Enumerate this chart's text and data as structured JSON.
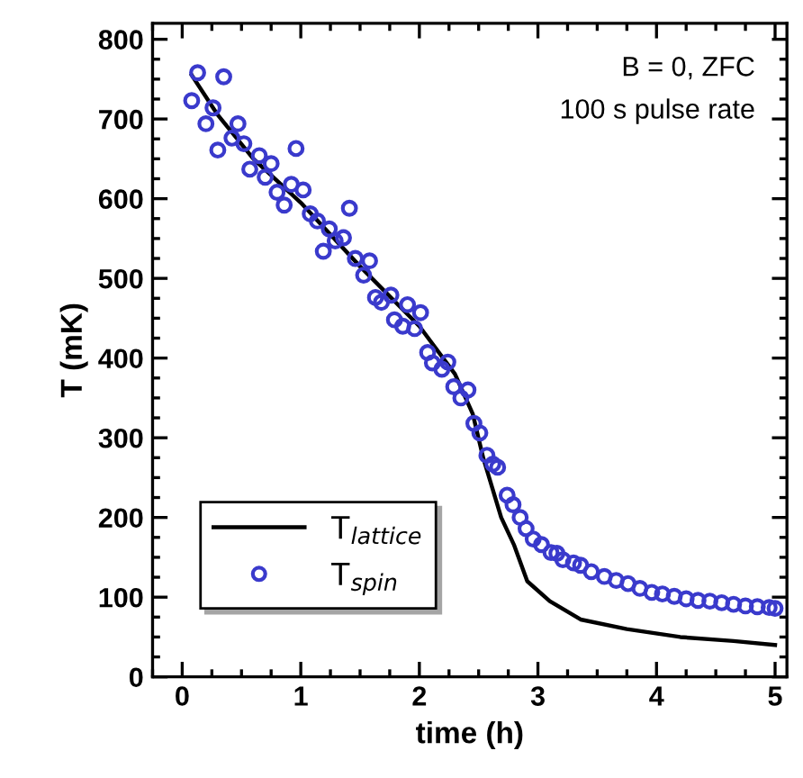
{
  "chart_data": {
    "type": "scatter",
    "xlabel": "time (h)",
    "ylabel": "T (mK)",
    "xlim": [
      -0.25,
      5.1
    ],
    "xticks": [
      0,
      1,
      2,
      3,
      4,
      5
    ],
    "ylim": [
      0,
      820
    ],
    "yticks": [
      0,
      100,
      200,
      300,
      400,
      500,
      600,
      700,
      800
    ],
    "grid": false,
    "legend": "bottom left",
    "annotations": [
      "B = 0, ZFC",
      "100 s pulse rate"
    ],
    "series": [
      {
        "name": "T$_{lattice}$",
        "type": "line",
        "color": "#000000",
        "marker": "none",
        "line_style": "solid",
        "x": [
          0.08,
          0.3,
          0.6,
          1.0,
          1.5,
          2.0,
          2.3,
          2.45,
          2.54,
          2.69,
          2.8,
          2.91,
          3.1,
          3.36,
          3.75,
          4.2,
          4.65,
          5.0
        ],
        "values": [
          755,
          705,
          650,
          595,
          515,
          440,
          380,
          330,
          274,
          200,
          165,
          120,
          95,
          72,
          60,
          50,
          45,
          40
        ]
      },
      {
        "name": "T$_{spin}$",
        "color": "#3a3acc",
        "marker": "circle",
        "x": [
          0.08,
          0.13,
          0.35,
          0.26,
          0.2,
          0.3,
          0.47,
          0.42,
          0.52,
          0.96,
          0.65,
          0.75,
          0.57,
          0.7,
          0.8,
          0.86,
          0.92,
          1.02,
          1.08,
          1.14,
          1.24,
          1.41,
          1.36,
          1.29,
          1.19,
          1.46,
          1.58,
          1.53,
          1.63,
          1.68,
          1.76,
          1.9,
          2.01,
          1.79,
          1.86,
          1.96,
          2.07,
          2.11,
          2.24,
          2.19,
          2.29,
          2.35,
          2.41,
          2.46,
          2.51,
          2.57,
          2.62,
          2.66,
          2.74,
          2.79,
          2.85,
          2.9,
          2.96,
          3.03,
          3.11,
          3.16,
          3.21,
          3.3,
          3.36,
          3.45,
          3.56,
          3.66,
          3.76,
          3.86,
          3.96,
          4.05,
          4.15,
          4.25,
          4.35,
          4.45,
          4.55,
          4.65,
          4.75,
          4.85,
          4.95,
          5.0
        ],
        "values": [
          723,
          758,
          753,
          714,
          694,
          661,
          694,
          676,
          669,
          663,
          654,
          644,
          637,
          627,
          608,
          592,
          618,
          611,
          581,
          572,
          562,
          588,
          551,
          547,
          534,
          525,
          522,
          504,
          476,
          470,
          479,
          467,
          457,
          448,
          440,
          437,
          407,
          394,
          395,
          386,
          364,
          350,
          360,
          318,
          306,
          278,
          267,
          263,
          228,
          216,
          200,
          186,
          173,
          166,
          156,
          155,
          147,
          143,
          140,
          132,
          126,
          121,
          117,
          111,
          106,
          104,
          101,
          98,
          96,
          95,
          93,
          91,
          89,
          88,
          87,
          86
        ]
      }
    ]
  }
}
